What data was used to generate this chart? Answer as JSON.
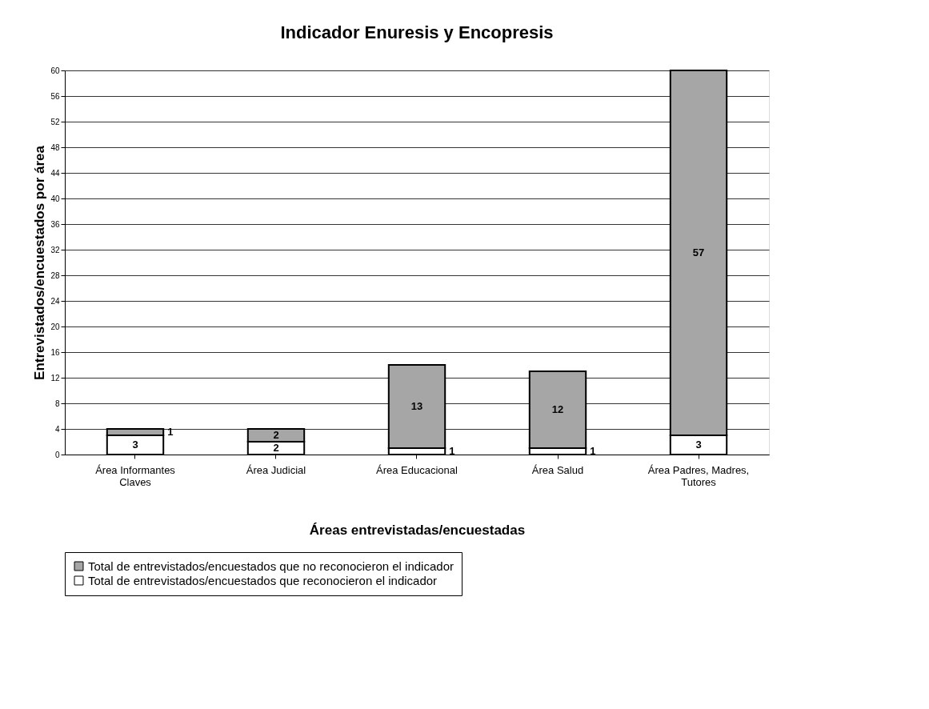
{
  "chart_data": {
    "type": "bar",
    "title": "Indicador Enuresis y Encopresis",
    "xlabel": "Áreas entrevistadas/encuestadas",
    "ylabel": "Entrevistados/encuestados por área",
    "categories": [
      "Área Informantes Claves",
      "Área Judicial",
      "Área Educacional",
      "Área Salud",
      "Área Padres, Madres, Tutores"
    ],
    "stacked": true,
    "series": [
      {
        "name": "Total de entrevistados/encuestados que reconocieron el indicador",
        "color": "#ffffff",
        "values": [
          3,
          2,
          1,
          1,
          3
        ]
      },
      {
        "name": "Total de entrevistados/encuestados que no reconocieron el indicador",
        "color": "#a6a6a6",
        "values": [
          1,
          2,
          13,
          12,
          57
        ]
      }
    ],
    "ylim": [
      0,
      60
    ],
    "yticks": [
      0,
      4,
      8,
      12,
      16,
      20,
      24,
      28,
      32,
      36,
      40,
      44,
      48,
      52,
      56,
      60
    ],
    "grid": "y",
    "legend": "bottom",
    "data_labels": true
  }
}
